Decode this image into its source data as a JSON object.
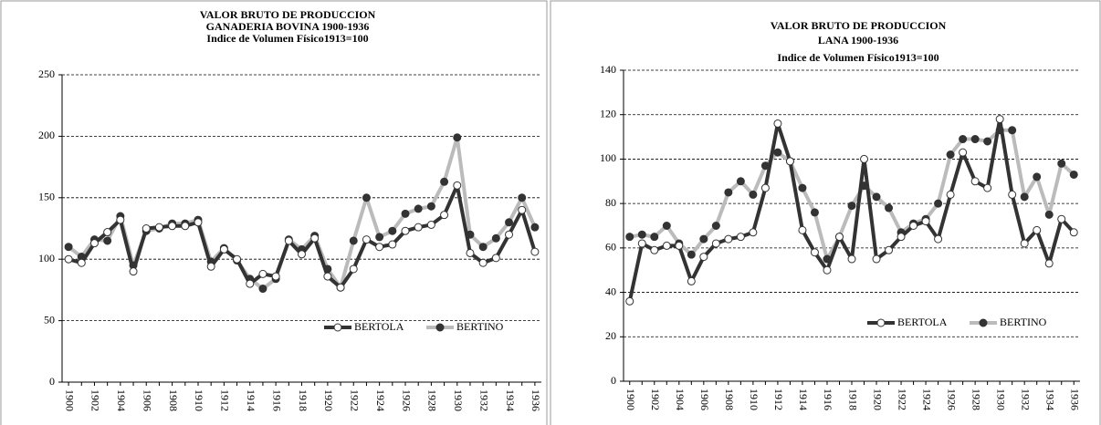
{
  "chart_data": [
    {
      "type": "line",
      "title": [
        "VALOR BRUTO DE PRODUCCION",
        "GANADERIA  BOVINA 1900-1936",
        "Indice de Volumen Físico1913=100"
      ],
      "categories": [
        "1900",
        null,
        "1902",
        null,
        "1904",
        null,
        "1906",
        null,
        "1908",
        null,
        "1910",
        null,
        "1912",
        null,
        "1914",
        null,
        "1916",
        null,
        "1918",
        null,
        "1920",
        null,
        "1922",
        null,
        "1924",
        null,
        "1926",
        null,
        "1928",
        null,
        "1930",
        null,
        "1932",
        null,
        "1934",
        null,
        "1936"
      ],
      "ylim": [
        0,
        250
      ],
      "yticks": [
        0,
        50,
        100,
        150,
        200,
        250
      ],
      "grid": true,
      "legend": "lower right",
      "series": [
        {
          "name": "BERTOLA",
          "color": "#333333",
          "values": [
            100,
            97,
            113,
            122,
            132,
            90,
            125,
            126,
            127,
            127,
            130,
            94,
            108,
            100,
            80,
            88,
            86,
            115,
            104,
            117,
            86,
            77,
            92,
            116,
            110,
            112,
            123,
            126,
            128,
            136,
            160,
            105,
            97,
            101,
            120,
            140,
            106
          ]
        },
        {
          "name": "BERTINO",
          "color": "#bbbbbb",
          "values": [
            110,
            102,
            116,
            115,
            135,
            95,
            123,
            125,
            129,
            129,
            132,
            98,
            109,
            99,
            84,
            76,
            84,
            116,
            108,
            119,
            92,
            77,
            115,
            150,
            118,
            123,
            137,
            141,
            143,
            163,
            199,
            120,
            110,
            117,
            130,
            150,
            126
          ]
        }
      ]
    },
    {
      "type": "line",
      "title": [
        "VALOR BRUTO DE PRODUCCION",
        "LANA 1900-1936",
        "Indice de Volumen Físico1913=100"
      ],
      "categories": [
        "1900",
        null,
        "1902",
        null,
        "1904",
        null,
        "1906",
        null,
        "1908",
        null,
        "1910",
        null,
        "1912",
        null,
        "1914",
        null,
        "1916",
        null,
        "1918",
        null,
        "1920",
        null,
        "1922",
        null,
        "1924",
        null,
        "1926",
        null,
        "1928",
        null,
        "1930",
        null,
        "1932",
        null,
        "1934",
        null,
        "1936"
      ],
      "ylim": [
        0,
        140
      ],
      "yticks": [
        0,
        20,
        40,
        60,
        80,
        100,
        120,
        140
      ],
      "grid": true,
      "legend": "lower right",
      "series": [
        {
          "name": "BERTOLA",
          "color": "#333333",
          "values": [
            36,
            62,
            59,
            61,
            61,
            45,
            56,
            62,
            64,
            65,
            67,
            87,
            116,
            99,
            68,
            58,
            50,
            65,
            55,
            100,
            55,
            59,
            65,
            70,
            72,
            64,
            84,
            103,
            90,
            87,
            118,
            84,
            62,
            68,
            53,
            73,
            67
          ]
        },
        {
          "name": "BERTINO",
          "color": "#bbbbbb",
          "values": [
            65,
            66,
            65,
            70,
            62,
            57,
            64,
            70,
            85,
            90,
            84,
            97,
            103,
            99,
            87,
            76,
            55,
            65,
            79,
            88,
            83,
            78,
            67,
            71,
            73,
            80,
            102,
            109,
            109,
            108,
            113,
            113,
            83,
            92,
            75,
            98,
            93
          ]
        }
      ]
    }
  ]
}
